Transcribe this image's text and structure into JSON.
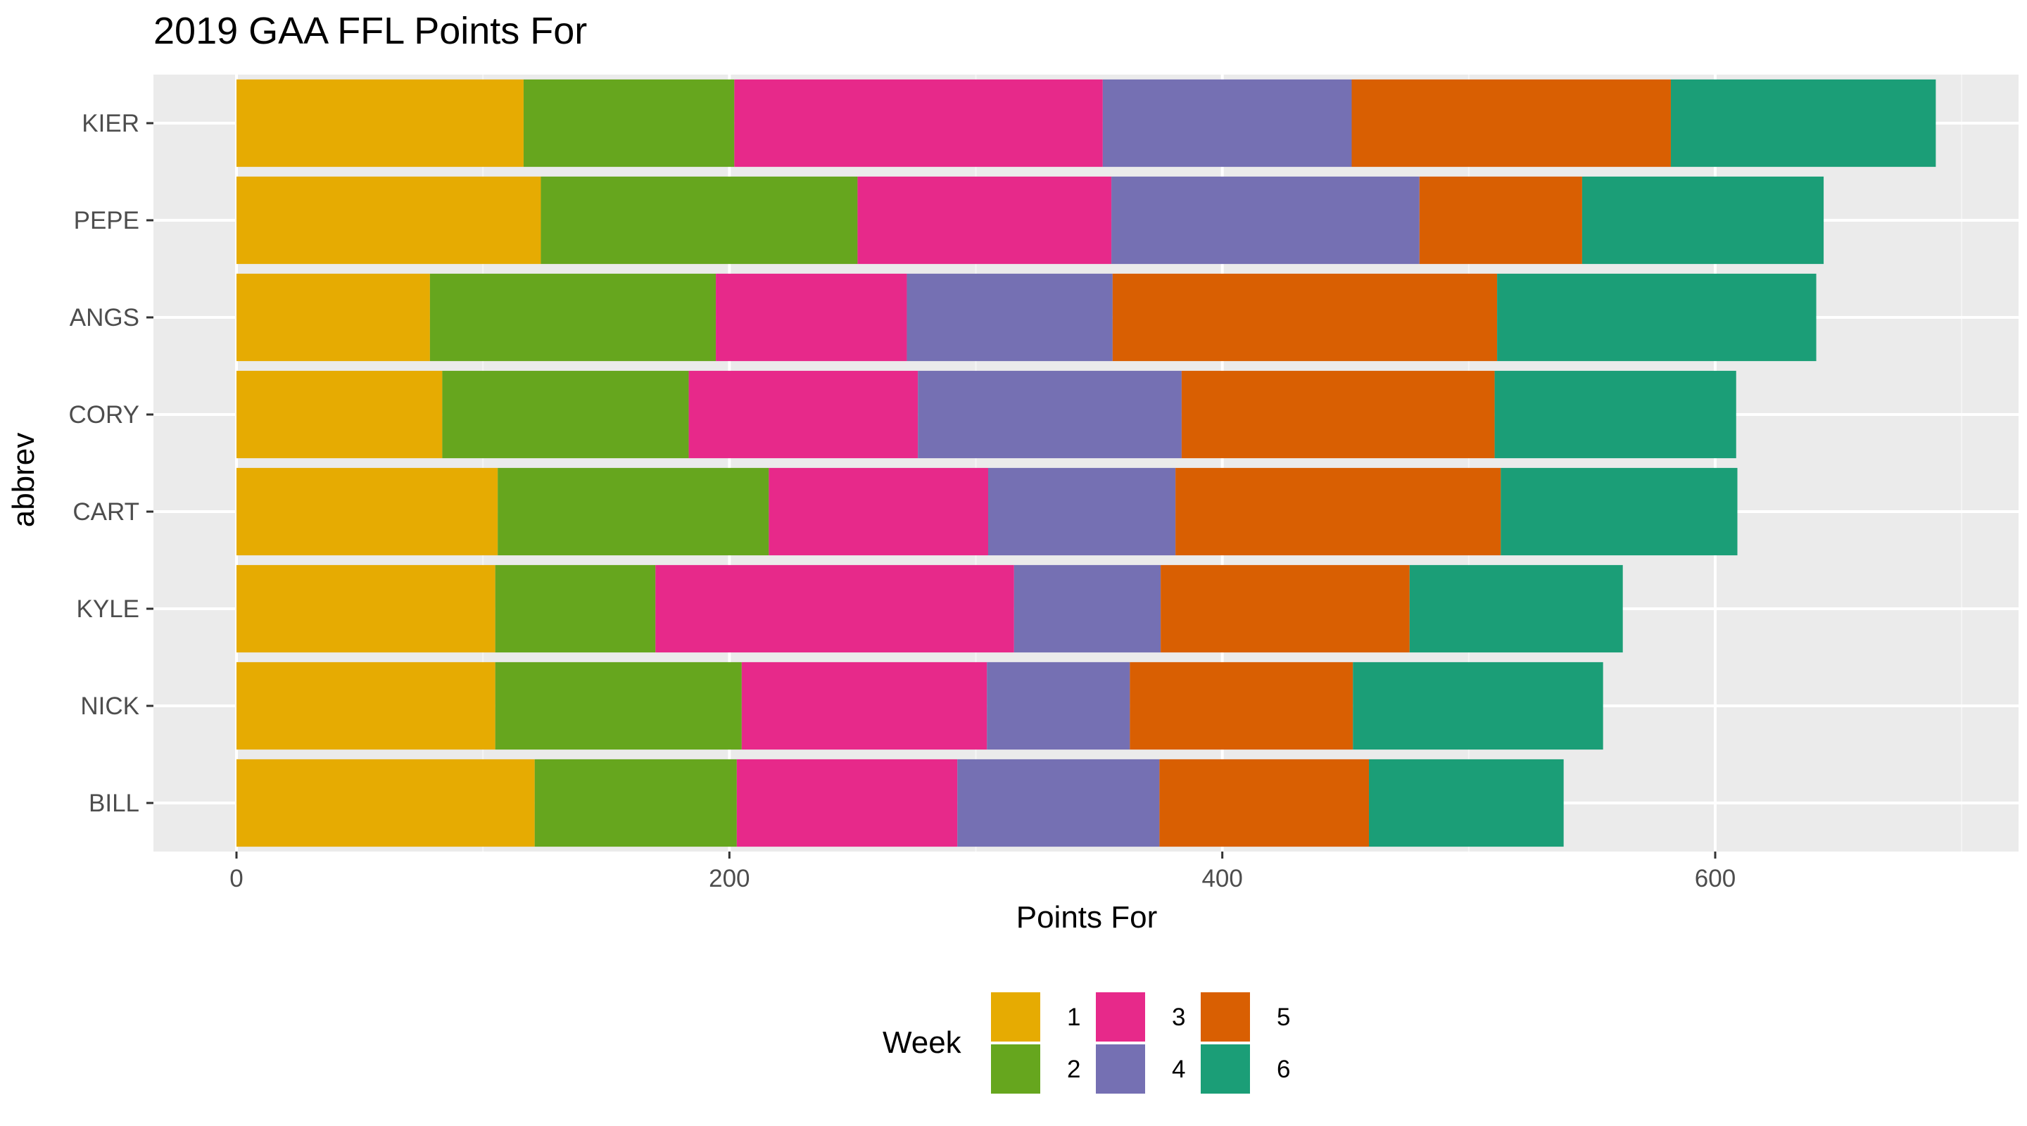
{
  "chart_data": {
    "type": "bar",
    "orientation": "horizontal",
    "stacked": true,
    "title": "2019 GAA FFL Points For",
    "xlabel": "Points For",
    "ylabel": "abbrev",
    "xlim": [
      -34.5,
      724.5
    ],
    "x_ticks": [
      0,
      200,
      400,
      600
    ],
    "x_tick_labels": [
      "0",
      "200",
      "400",
      "600"
    ],
    "grid": true,
    "categories": [
      "KIER",
      "PEPE",
      "ANGS",
      "CORY",
      "CART",
      "KYLE",
      "NICK",
      "BILL"
    ],
    "legend": {
      "title": "Week",
      "position": "bottom"
    },
    "series": [
      {
        "name": "1",
        "color": "#E6AB02",
        "values": [
          116.5,
          123.5,
          78.5,
          83.5,
          106.0,
          105.0,
          105.0,
          121.0
        ]
      },
      {
        "name": "2",
        "color": "#66A61E",
        "values": [
          85.5,
          128.5,
          116.0,
          100.0,
          110.0,
          65.0,
          100.0,
          82.0
        ]
      },
      {
        "name": "3",
        "color": "#E7298A",
        "values": [
          149.5,
          103.0,
          77.5,
          93.0,
          89.0,
          145.5,
          99.5,
          89.5
        ]
      },
      {
        "name": "4",
        "color": "#7570B3",
        "values": [
          101.0,
          125.0,
          83.5,
          107.0,
          76.0,
          59.5,
          58.0,
          82.0
        ]
      },
      {
        "name": "5",
        "color": "#D95F02",
        "values": [
          129.5,
          66.0,
          156.0,
          127.0,
          132.0,
          101.0,
          90.5,
          85.0
        ]
      },
      {
        "name": "6",
        "color": "#1B9E77",
        "values": [
          107.5,
          98.0,
          129.5,
          98.0,
          96.0,
          86.5,
          101.5,
          79.0
        ]
      }
    ]
  },
  "colors": {
    "panel_background": "#EBEBEB",
    "grid_major": "#FFFFFF",
    "grid_minor": "#F5F5F5",
    "tick_mark": "#333333"
  }
}
